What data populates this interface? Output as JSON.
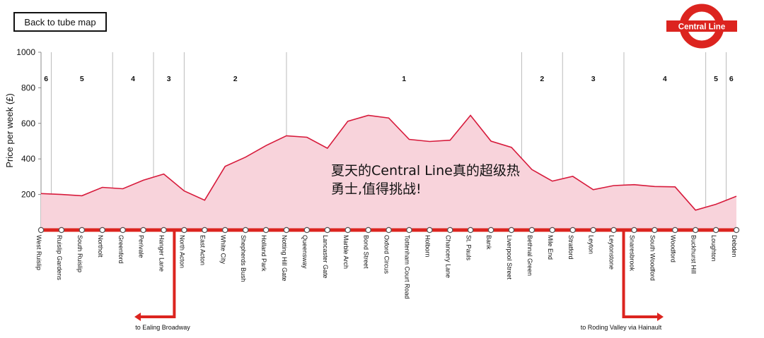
{
  "nav": {
    "back_label": "Back to tube map"
  },
  "logo": {
    "text": "Central Line",
    "color": "#dc241f"
  },
  "overlay_text": [
    "夏天的Central Line真的超级热",
    "勇士,值得挑战!"
  ],
  "colors": {
    "line": "#dc241f",
    "area": "#f8d3db",
    "area_stroke": "#d71a3b",
    "grid": "#bbbbbb"
  },
  "chart_data": {
    "type": "area",
    "ylabel": "Price per week (£)",
    "ylim": [
      0,
      1000
    ],
    "yticks": [
      200,
      400,
      600,
      800,
      1000
    ],
    "x": [
      "West Ruislip",
      "Ruislip Gardens",
      "South Ruislip",
      "Northolt",
      "Greenford",
      "Perivale",
      "Hanger Lane",
      "North Acton",
      "East Acton",
      "White City",
      "Shepherds Bush",
      "Holland Park",
      "Notting Hill Gate",
      "Queensway",
      "Lancaster Gate",
      "Marble Arch",
      "Bond Street",
      "Oxford Circus",
      "Tottenham Court Road",
      "Holborn",
      "Chancery Lane",
      "St. Pauls",
      "Bank",
      "Liverpool Street",
      "Bethnal Green",
      "Mile End",
      "Stratford",
      "Leyton",
      "Leytonstone",
      "Snaresbrook",
      "South Woodford",
      "Woodford",
      "Buckhurst Hill",
      "Loughton",
      "Debden"
    ],
    "values": [
      205,
      200,
      193,
      240,
      232,
      280,
      315,
      220,
      168,
      358,
      410,
      475,
      530,
      522,
      460,
      612,
      645,
      630,
      510,
      498,
      505,
      645,
      500,
      465,
      340,
      275,
      302,
      227,
      250,
      255,
      245,
      243,
      112,
      145,
      190
    ],
    "zones": [
      {
        "label": "6",
        "from": 0,
        "to": 0.5
      },
      {
        "label": "5",
        "from": 0.5,
        "to": 3.5
      },
      {
        "label": "4",
        "from": 3.5,
        "to": 5.5
      },
      {
        "label": "3",
        "from": 5.5,
        "to": 7
      },
      {
        "label": "2",
        "from": 7,
        "to": 12
      },
      {
        "label": "1",
        "from": 12,
        "to": 23.5
      },
      {
        "label": "2",
        "from": 23.5,
        "to": 25.5
      },
      {
        "label": "3",
        "from": 25.5,
        "to": 28.5
      },
      {
        "label": "4",
        "from": 28.5,
        "to": 32.5
      },
      {
        "label": "5",
        "from": 32.5,
        "to": 33.5
      },
      {
        "label": "6",
        "from": 33.5,
        "to": 34
      }
    ],
    "branches": [
      {
        "label": "to Ealing Broadway",
        "from_station": "North Acton",
        "direction": "left"
      },
      {
        "label": "to Roding Valley via Hainault",
        "from_station": "Leytonstone",
        "direction": "right"
      }
    ]
  }
}
